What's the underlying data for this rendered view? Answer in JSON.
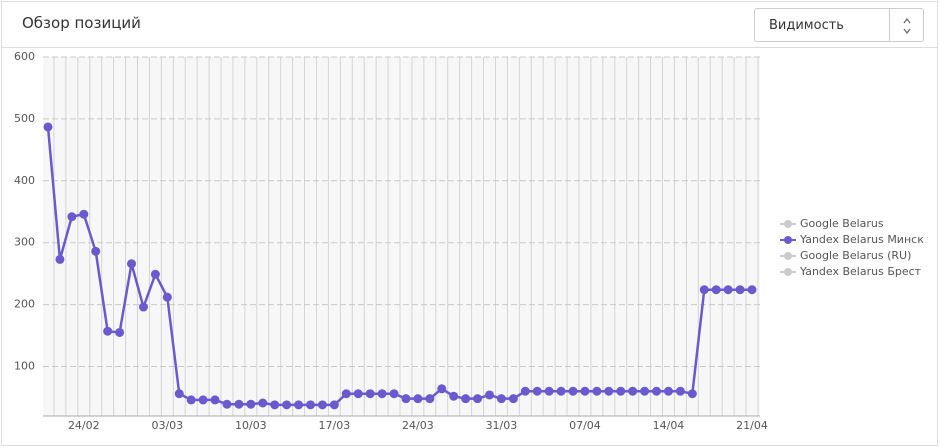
{
  "header": {
    "title": "Обзор позиций",
    "select": "Видимость"
  },
  "chart_data": {
    "type": "line",
    "categories": [
      null,
      null,
      null,
      "24/02",
      null,
      null,
      null,
      null,
      null,
      null,
      "03/03",
      null,
      null,
      null,
      null,
      null,
      null,
      "10/03",
      null,
      null,
      null,
      null,
      null,
      null,
      "17/03",
      null,
      null,
      null,
      null,
      null,
      null,
      "24/03",
      null,
      null,
      null,
      null,
      null,
      null,
      "31/03",
      null,
      null,
      null,
      null,
      null,
      null,
      "07/04",
      null,
      null,
      null,
      null,
      null,
      null,
      "14/04",
      null,
      null,
      null,
      null,
      null,
      null,
      "21/04"
    ],
    "series": [
      {
        "name": "Google Belarus",
        "color": "#cccccc",
        "visible": false,
        "values": null
      },
      {
        "name": "Yandex Belarus Минск",
        "color": "#6a5acd",
        "visible": true,
        "values": [
          487,
          273,
          342,
          346,
          286,
          157,
          155,
          266,
          196,
          249,
          212,
          56,
          46,
          46,
          46,
          39,
          39,
          39,
          41,
          38,
          38,
          38,
          38,
          38,
          38,
          56,
          56,
          56,
          56,
          56,
          48,
          48,
          48,
          64,
          52,
          48,
          48,
          54,
          48,
          48,
          60,
          60,
          60,
          60,
          60,
          60,
          60,
          60,
          60,
          60,
          60,
          60,
          60,
          60,
          56,
          224,
          224,
          224,
          224,
          224
        ]
      },
      {
        "name": "Google Belarus (RU)",
        "color": "#cccccc",
        "visible": false,
        "values": null
      },
      {
        "name": "Yandex Belarus Брест",
        "color": "#cccccc",
        "visible": false,
        "values": null
      }
    ],
    "ylim": [
      20,
      600
    ],
    "yticks": [
      100,
      200,
      300,
      400,
      500,
      600
    ],
    "grid": true
  }
}
